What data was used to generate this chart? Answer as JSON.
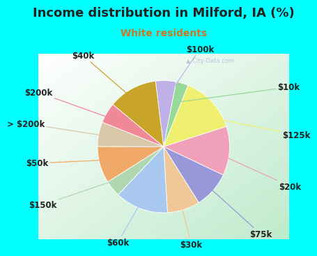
{
  "title": "Income distribution in Milford, IA (%)",
  "subtitle": "White residents",
  "watermark": "▲ City-Data.com",
  "bg_color": "#00FFFF",
  "chart_bg_colors": [
    "#c0e8c8",
    "#d8eedc",
    "#eef8f0",
    "#f5fcf8",
    "#ffffff"
  ],
  "slices": [
    {
      "label": "$100k",
      "value": 5,
      "color": "#c0b0e8"
    },
    {
      "label": "$10k",
      "value": 3,
      "color": "#98d898"
    },
    {
      "label": "$125k",
      "value": 14,
      "color": "#f0f070"
    },
    {
      "label": "$20k",
      "value": 12,
      "color": "#f0a0b8"
    },
    {
      "label": "$75k",
      "value": 9,
      "color": "#9898d8"
    },
    {
      "label": "$30k",
      "value": 8,
      "color": "#f0c898"
    },
    {
      "label": "$60k",
      "value": 13,
      "color": "#a8c8f0"
    },
    {
      "label": "$150k",
      "value": 4,
      "color": "#b0d8b0"
    },
    {
      "label": "$50k",
      "value": 9,
      "color": "#f0a868"
    },
    {
      "label": "> $200k",
      "value": 6,
      "color": "#d8c8a8"
    },
    {
      "label": "$200k",
      "value": 5,
      "color": "#f08898"
    },
    {
      "label": "$40k",
      "value": 12,
      "color": "#c8a428"
    }
  ],
  "start_angle": 97,
  "title_fontsize": 13,
  "subtitle_fontsize": 10,
  "label_fontsize": 8.5,
  "title_color": "#222222",
  "subtitle_color": "#cc7722",
  "label_color": "#222222",
  "watermark_color": "#aaaacc",
  "border_width": 6
}
